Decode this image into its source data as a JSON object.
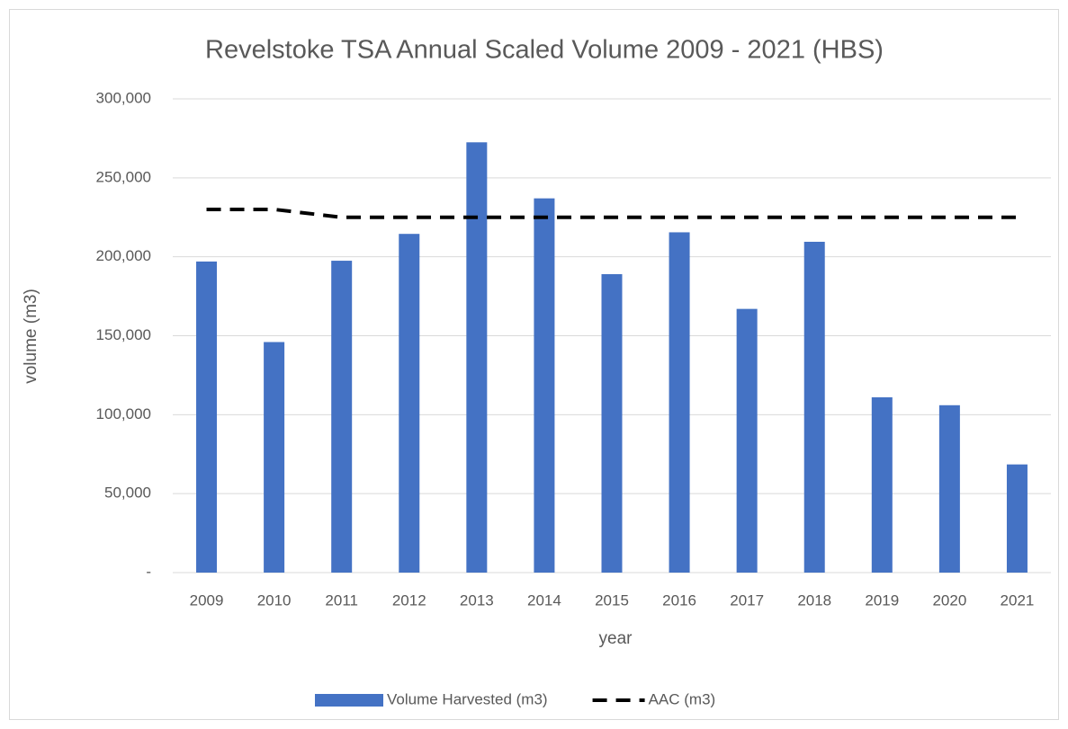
{
  "chart_data": {
    "type": "bar",
    "title": "Revelstoke TSA Annual Scaled Volume 2009 - 2021 (HBS)",
    "x_label": "year",
    "y_label": "volume (m3)",
    "categories": [
      "2009",
      "2010",
      "2011",
      "2012",
      "2013",
      "2014",
      "2015",
      "2016",
      "2017",
      "2018",
      "2019",
      "2020",
      "2021"
    ],
    "series": [
      {
        "name": "Volume Harvested (m3)",
        "type": "bar",
        "color": "#4472c4",
        "values": [
          197000,
          146000,
          197500,
          214500,
          272500,
          237000,
          189000,
          215500,
          167000,
          209500,
          111000,
          106000,
          68500
        ]
      },
      {
        "name": "AAC (m3)",
        "type": "line",
        "color": "#000000",
        "dashed": true,
        "values": [
          230000,
          230000,
          225000,
          225000,
          225000,
          225000,
          225000,
          225000,
          225000,
          225000,
          225000,
          225000,
          225000
        ]
      }
    ],
    "ylim": [
      0,
      300000
    ],
    "yticks": [
      {
        "value": 0,
        "label": "-"
      },
      {
        "value": 50000,
        "label": "50,000"
      },
      {
        "value": 100000,
        "label": "100,000"
      },
      {
        "value": 150000,
        "label": "150,000"
      },
      {
        "value": 200000,
        "label": "200,000"
      },
      {
        "value": 250000,
        "label": "250,000"
      },
      {
        "value": 300000,
        "label": "300,000"
      }
    ],
    "grid": true,
    "legend": "bottom"
  }
}
